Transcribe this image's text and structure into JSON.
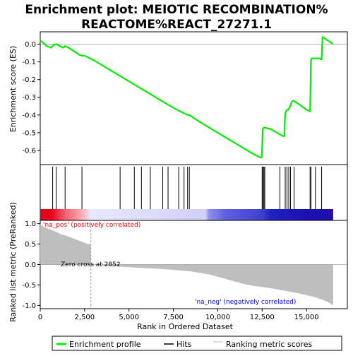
{
  "title_line1": "Enrichment plot: MEIOTIC RECOMBINATION%",
  "title_line2": "REACTOME%REACT_27271.1",
  "colors": {
    "profile": "#00ee00",
    "hits": "#000000",
    "metric": "#bebebe",
    "pos_label": "#ff0000",
    "neg_label": "#0000ff",
    "zero_line": "#808080"
  },
  "chart_data": [
    {
      "type": "line",
      "panel": "enrichment-profile",
      "ylabel": "Enrichment score (ES)",
      "xlim": [
        0,
        17300
      ],
      "ylim": [
        -0.68,
        0.07
      ],
      "yticks": [
        0.0,
        -0.1,
        -0.2,
        -0.3,
        -0.4,
        -0.5,
        -0.6
      ],
      "ytick_labels": [
        "0.0",
        "-0.1",
        "-0.2",
        "-0.3",
        "-0.4",
        "-0.5",
        "-0.6"
      ],
      "series": [
        {
          "x": [
            0,
            150,
            350,
            600,
            750,
            900,
            1100,
            1300,
            1400,
            1600,
            1900,
            2200,
            2350,
            2500,
            3000,
            4000,
            5000,
            6000,
            7000,
            7700,
            8000,
            8200,
            8300,
            8400,
            9000,
            10000,
            11000,
            12000,
            12400,
            12480,
            12530,
            12600,
            13000,
            13500,
            13700,
            13750,
            13800,
            13900,
            14000,
            14050,
            14100,
            14150,
            14200,
            14300,
            15000,
            15200,
            15250,
            15300,
            15350,
            15500,
            15600,
            15700,
            15800,
            15850,
            15900,
            16000,
            16500
          ],
          "y": [
            0.02,
            0.01,
            -0.01,
            -0.02,
            -0.005,
            0.0,
            -0.01,
            -0.02,
            -0.01,
            -0.02,
            -0.04,
            -0.06,
            -0.065,
            -0.065,
            -0.09,
            -0.15,
            -0.21,
            -0.27,
            -0.33,
            -0.37,
            -0.385,
            -0.395,
            -0.4,
            -0.4,
            -0.44,
            -0.5,
            -0.56,
            -0.62,
            -0.64,
            -0.64,
            -0.48,
            -0.47,
            -0.48,
            -0.51,
            -0.52,
            -0.52,
            -0.39,
            -0.37,
            -0.37,
            -0.35,
            -0.35,
            -0.33,
            -0.32,
            -0.32,
            -0.37,
            -0.38,
            -0.09,
            -0.08,
            -0.08,
            -0.08,
            -0.08,
            -0.08,
            -0.085,
            -0.085,
            0.04,
            0.035,
            0.0
          ]
        }
      ]
    },
    {
      "type": "scatter",
      "panel": "hits",
      "xlim": [
        0,
        17300
      ],
      "hit_positions": [
        700,
        900,
        1400,
        2350,
        4500,
        5300,
        5700,
        6200,
        6900,
        7200,
        7800,
        8100,
        8300,
        8400,
        12500,
        12550,
        12600,
        12650,
        13500,
        13800,
        13900,
        14000,
        14100,
        14300,
        15200,
        15250,
        15500,
        15850
      ]
    },
    {
      "type": "area",
      "panel": "ranked-list-metric",
      "xlabel": "Rank in Ordered Dataset",
      "ylabel": "Ranked list metric (PreRanked)",
      "xlim": [
        0,
        17300
      ],
      "ylim": [
        -1.08,
        1.08
      ],
      "xticks": [
        0,
        2500,
        5000,
        7500,
        10000,
        12500,
        15000
      ],
      "xtick_labels": [
        "0",
        "2,500",
        "5,000",
        "7,500",
        "10,000",
        "12,500",
        "15,000"
      ],
      "yticks": [
        1.0,
        0.5,
        0.0,
        -0.5,
        -1.0
      ],
      "ytick_labels": [
        "1.0",
        "0.5",
        "0.0",
        "-0.5",
        "-1.0"
      ],
      "x": [
        0,
        100,
        300,
        600,
        900,
        1200,
        1500,
        1800,
        2100,
        2400,
        2700,
        2852,
        3500,
        4500,
        5500,
        6500,
        7500,
        8500,
        9500,
        10000,
        10500,
        11000,
        11500,
        12000,
        12500,
        13000,
        13500,
        14000,
        14500,
        15000,
        15500,
        16000,
        16300,
        16500
      ],
      "values": [
        1.0,
        0.95,
        0.9,
        0.85,
        0.8,
        0.74,
        0.7,
        0.65,
        0.6,
        0.55,
        0.5,
        0.0,
        -0.02,
        -0.05,
        -0.08,
        -0.1,
        -0.13,
        -0.17,
        -0.24,
        -0.3,
        -0.36,
        -0.42,
        -0.48,
        -0.52,
        -0.55,
        -0.58,
        -0.62,
        -0.66,
        -0.7,
        -0.75,
        -0.8,
        -0.88,
        -0.94,
        -1.0
      ],
      "zero_cross": 2852,
      "zero_cross_label": "Zero cross at 2852",
      "pos_label": "'na_pos' (positively correlated)",
      "neg_label": "'na_neg' (negatively correlated)"
    }
  ],
  "legend": {
    "items": [
      {
        "label": "Enrichment profile",
        "color": "#00ee00",
        "kind": "thick-line"
      },
      {
        "label": "Hits",
        "color": "#000000",
        "kind": "line"
      },
      {
        "label": "Ranking metric scores",
        "color": "#bebebe",
        "kind": "line"
      }
    ]
  }
}
